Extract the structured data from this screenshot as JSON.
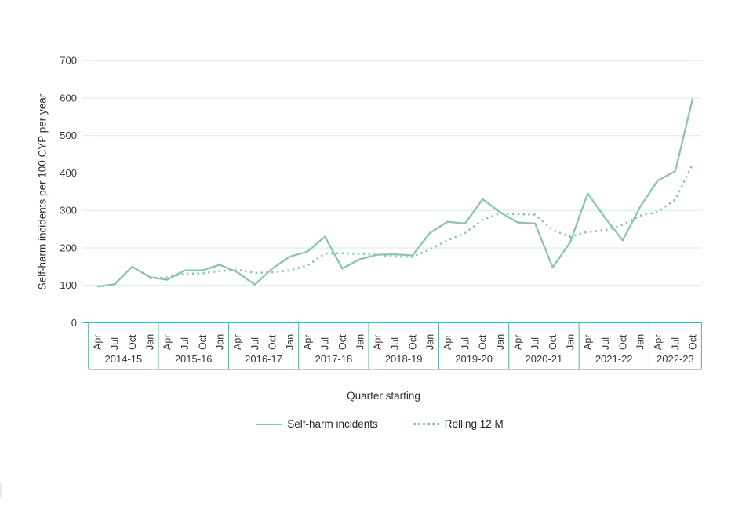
{
  "colors": {
    "line": "#8cc2b9",
    "grid": "#d6ebe7",
    "axis_border": "#4fb0a9",
    "tick_text": "#383838",
    "title_text": "#303030"
  },
  "legend": {
    "items": [
      {
        "label": "Self-harm incidents",
        "style": "solid"
      },
      {
        "label": "Rolling 12 M",
        "style": "dotted"
      }
    ]
  },
  "chart_data": {
    "type": "line",
    "title": "",
    "xlabel": "Quarter starting",
    "ylabel": "Self-harm incidents per 100 CYP per year",
    "ylim": [
      0,
      700
    ],
    "yticks": [
      0,
      100,
      200,
      300,
      400,
      500,
      600,
      700
    ],
    "grid": true,
    "legend_position": "bottom",
    "x_groups": [
      {
        "label": "2014-15",
        "quarters": [
          "Apr",
          "Jul",
          "Oct",
          "Jan"
        ]
      },
      {
        "label": "2015-16",
        "quarters": [
          "Apr",
          "Jul",
          "Oct",
          "Jan"
        ]
      },
      {
        "label": "2016-17",
        "quarters": [
          "Apr",
          "Jul",
          "Oct",
          "Jan"
        ]
      },
      {
        "label": "2017-18",
        "quarters": [
          "Apr",
          "Jul",
          "Oct",
          "Jan"
        ]
      },
      {
        "label": "2018-19",
        "quarters": [
          "Apr",
          "Jul",
          "Oct",
          "Jan"
        ]
      },
      {
        "label": "2019-20",
        "quarters": [
          "Apr",
          "Jul",
          "Oct",
          "Jan"
        ]
      },
      {
        "label": "2020-21",
        "quarters": [
          "Apr",
          "Jul",
          "Oct",
          "Jan"
        ]
      },
      {
        "label": "2021-22",
        "quarters": [
          "Apr",
          "Jul",
          "Oct",
          "Jan"
        ]
      },
      {
        "label": "2022-23",
        "quarters": [
          "Apr",
          "Jul",
          "Oct"
        ]
      }
    ],
    "series": [
      {
        "name": "Self-harm incidents",
        "style": "solid",
        "values": [
          97,
          103,
          150,
          122,
          115,
          140,
          140,
          155,
          135,
          102,
          145,
          177,
          190,
          230,
          145,
          170,
          182,
          183,
          180,
          240,
          270,
          265,
          330,
          295,
          268,
          265,
          148,
          215,
          345,
          280,
          220,
          310,
          380,
          405,
          600
        ]
      },
      {
        "name": "Rolling 12 M",
        "style": "dotted",
        "values": [
          null,
          null,
          null,
          118,
          122,
          131,
          132,
          138,
          142,
          133,
          135,
          140,
          153,
          185,
          186,
          184,
          182,
          177,
          176,
          196,
          220,
          240,
          275,
          292,
          290,
          289,
          248,
          230,
          243,
          247,
          262,
          286,
          296,
          329,
          424
        ]
      }
    ]
  }
}
